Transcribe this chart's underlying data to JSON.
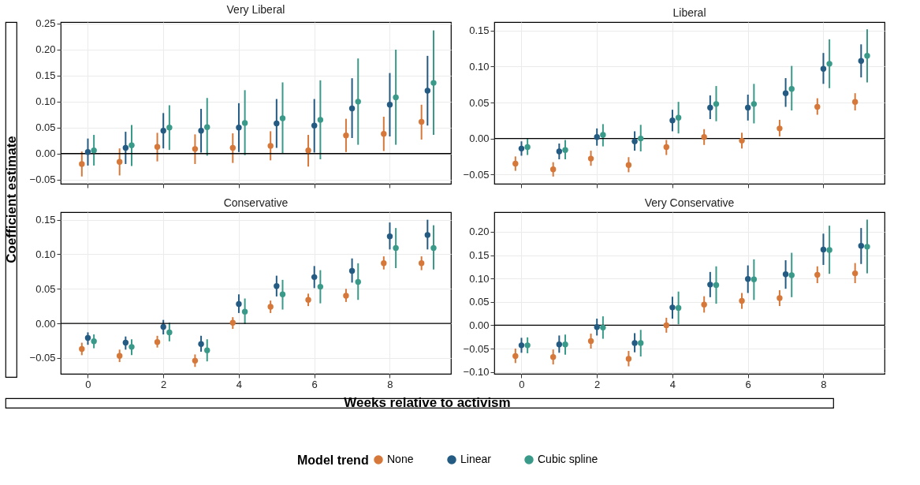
{
  "chart_data": [
    {
      "type": "scatter",
      "title": "Very Liberal",
      "ylabel": "Coefficient estimate",
      "legend": "bottom",
      "legend_title": "Model trend",
      "xlim": [
        -0.72,
        9.62
      ],
      "xticks": [
        0,
        2,
        4,
        6,
        8
      ],
      "ylim": [
        -0.058,
        0.253
      ],
      "yticks": [
        {
          "value": -0.05,
          "label": "−0.05"
        },
        {
          "value": 0,
          "label": "0.00"
        },
        {
          "value": 0.05,
          "label": "0.05"
        },
        {
          "value": 0.1,
          "label": "0.10"
        },
        {
          "value": 0.15,
          "label": "0.15"
        },
        {
          "value": 0.2,
          "label": "0.20"
        },
        {
          "value": 0.25,
          "label": "0.25"
        }
      ],
      "tick_labels": "y",
      "grid": true,
      "marker": "circle",
      "ref_lines": [
        {
          "axis": "y",
          "value": 0,
          "color": "#000000"
        }
      ],
      "series": [
        {
          "name": "None",
          "color": "#d5783a",
          "x": [
            -0.16,
            0.84,
            1.84,
            2.84,
            3.84,
            4.84,
            5.84,
            6.84,
            7.84,
            8.84
          ],
          "values": [
            -0.02,
            -0.016,
            0.013,
            0.009,
            0.011,
            0.015,
            0.006,
            0.035,
            0.038,
            0.061
          ],
          "errors": [
            [
              -0.044,
              0.004
            ],
            [
              -0.042,
              0.01
            ],
            [
              -0.015,
              0.04
            ],
            [
              -0.02,
              0.037
            ],
            [
              -0.018,
              0.039
            ],
            [
              -0.013,
              0.043
            ],
            [
              -0.025,
              0.036
            ],
            [
              0.003,
              0.067
            ],
            [
              0.005,
              0.071
            ],
            [
              0.027,
              0.094
            ]
          ]
        },
        {
          "name": "Linear",
          "color": "#235b82",
          "x": [
            0,
            1,
            2,
            3,
            4,
            5,
            6,
            7,
            8,
            9
          ],
          "values": [
            0.003,
            0.011,
            0.044,
            0.044,
            0.05,
            0.058,
            0.054,
            0.087,
            0.094,
            0.121
          ],
          "errors": [
            [
              -0.023,
              0.029
            ],
            [
              -0.02,
              0.042
            ],
            [
              0.01,
              0.078
            ],
            [
              0.002,
              0.086
            ],
            [
              0.003,
              0.097
            ],
            [
              0.011,
              0.105
            ],
            [
              0.002,
              0.105
            ],
            [
              0.03,
              0.145
            ],
            [
              0.033,
              0.155
            ],
            [
              0.054,
              0.188
            ]
          ]
        },
        {
          "name": "Cubic spline",
          "color": "#3a9a8a",
          "x": [
            0.16,
            1.16,
            2.16,
            3.16,
            4.16,
            5.16,
            6.16,
            7.16,
            8.16,
            9.16
          ],
          "values": [
            0.006,
            0.016,
            0.05,
            0.051,
            0.059,
            0.068,
            0.065,
            0.1,
            0.108,
            0.136
          ],
          "errors": [
            [
              -0.023,
              0.036
            ],
            [
              -0.024,
              0.055
            ],
            [
              0.007,
              0.093
            ],
            [
              -0.004,
              0.107
            ],
            [
              -0.003,
              0.122
            ],
            [
              0,
              0.137
            ],
            [
              -0.011,
              0.141
            ],
            [
              0.017,
              0.183
            ],
            [
              0.017,
              0.2
            ],
            [
              0.036,
              0.237
            ]
          ]
        }
      ]
    },
    {
      "type": "scatter",
      "title": "Liberal",
      "xlim": [
        -0.72,
        9.62
      ],
      "xticks": [
        0,
        2,
        4,
        6,
        8
      ],
      "ylim": [
        -0.063,
        0.162
      ],
      "yticks": [
        {
          "value": -0.05,
          "label": "−0.05"
        },
        {
          "value": 0,
          "label": "0.00"
        },
        {
          "value": 0.05,
          "label": "0.05"
        },
        {
          "value": 0.1,
          "label": "0.10"
        },
        {
          "value": 0.15,
          "label": "0.15"
        }
      ],
      "tick_labels": "y",
      "grid": true,
      "marker": "circle",
      "ref_lines": [
        {
          "axis": "y",
          "value": 0,
          "color": "#000000"
        }
      ],
      "series": [
        {
          "name": "None",
          "color": "#d5783a",
          "x": [
            -0.16,
            0.84,
            1.84,
            2.84,
            3.84,
            4.84,
            5.84,
            6.84,
            7.84,
            8.84
          ],
          "values": [
            -0.035,
            -0.043,
            -0.028,
            -0.037,
            -0.012,
            0.002,
            -0.003,
            0.014,
            0.044,
            0.051
          ],
          "errors": [
            [
              -0.045,
              -0.025
            ],
            [
              -0.053,
              -0.033
            ],
            [
              -0.038,
              -0.017
            ],
            [
              -0.047,
              -0.026
            ],
            [
              -0.023,
              -0.002
            ],
            [
              -0.009,
              0.013
            ],
            [
              -0.014,
              0.008
            ],
            [
              0.003,
              0.026
            ],
            [
              0.033,
              0.056
            ],
            [
              0.039,
              0.063
            ]
          ]
        },
        {
          "name": "Linear",
          "color": "#235b82",
          "x": [
            0,
            1,
            2,
            3,
            4,
            5,
            6,
            7,
            8,
            9
          ],
          "values": [
            -0.014,
            -0.018,
            0.002,
            -0.004,
            0.025,
            0.043,
            0.043,
            0.063,
            0.097,
            0.108
          ],
          "errors": [
            [
              -0.024,
              -0.004
            ],
            [
              -0.029,
              -0.007
            ],
            [
              -0.01,
              0.014
            ],
            [
              -0.017,
              0.01
            ],
            [
              0.01,
              0.04
            ],
            [
              0.027,
              0.06
            ],
            [
              0.025,
              0.061
            ],
            [
              0.044,
              0.084
            ],
            [
              0.076,
              0.119
            ],
            [
              0.085,
              0.131
            ]
          ]
        },
        {
          "name": "Cubic spline",
          "color": "#3a9a8a",
          "x": [
            0.16,
            1.16,
            2.16,
            3.16,
            4.16,
            5.16,
            6.16,
            7.16,
            8.16,
            9.16
          ],
          "values": [
            -0.012,
            -0.016,
            0.005,
            0,
            0.029,
            0.048,
            0.048,
            0.069,
            0.104,
            0.115
          ],
          "errors": [
            [
              -0.023,
              0
            ],
            [
              -0.029,
              -0.002
            ],
            [
              -0.011,
              0.02
            ],
            [
              -0.018,
              0.019
            ],
            [
              0.007,
              0.051
            ],
            [
              0.024,
              0.073
            ],
            [
              0.021,
              0.076
            ],
            [
              0.039,
              0.101
            ],
            [
              0.07,
              0.138
            ],
            [
              0.078,
              0.152
            ]
          ]
        }
      ]
    },
    {
      "type": "scatter",
      "title": "Conservative",
      "xlabel": "Weeks relative to activism",
      "xlim": [
        -0.72,
        9.62
      ],
      "xticks": [
        0,
        2,
        4,
        6,
        8
      ],
      "ylim": [
        -0.073,
        0.161
      ],
      "yticks": [
        {
          "value": -0.05,
          "label": "−0.05"
        },
        {
          "value": 0,
          "label": "0.00"
        },
        {
          "value": 0.05,
          "label": "0.05"
        },
        {
          "value": 0.1,
          "label": "0.10"
        },
        {
          "value": 0.15,
          "label": "0.15"
        }
      ],
      "grid": true,
      "marker": "circle",
      "ref_lines": [
        {
          "axis": "y",
          "value": 0,
          "color": "#000000"
        }
      ],
      "series": [
        {
          "name": "None",
          "color": "#d5783a",
          "x": [
            -0.16,
            0.84,
            1.84,
            2.84,
            3.84,
            4.84,
            5.84,
            6.84,
            7.84,
            8.84
          ],
          "values": [
            -0.037,
            -0.047,
            -0.027,
            -0.054,
            0.001,
            0.024,
            0.034,
            0.04,
            0.087,
            0.087
          ],
          "errors": [
            [
              -0.046,
              -0.028
            ],
            [
              -0.056,
              -0.038
            ],
            [
              -0.035,
              -0.018
            ],
            [
              -0.063,
              -0.045
            ],
            [
              -0.008,
              0.009
            ],
            [
              0.015,
              0.033
            ],
            [
              0.025,
              0.043
            ],
            [
              0.031,
              0.05
            ],
            [
              0.078,
              0.097
            ],
            [
              0.077,
              0.097
            ]
          ]
        },
        {
          "name": "Linear",
          "color": "#235b82",
          "x": [
            0,
            1,
            2,
            3,
            4,
            5,
            6,
            7,
            8,
            9
          ],
          "values": [
            -0.021,
            -0.028,
            -0.005,
            -0.03,
            0.028,
            0.054,
            0.067,
            0.076,
            0.126,
            0.128
          ],
          "errors": [
            [
              -0.031,
              -0.013
            ],
            [
              -0.038,
              -0.019
            ],
            [
              -0.016,
              0.005
            ],
            [
              -0.041,
              -0.018
            ],
            [
              0.015,
              0.042
            ],
            [
              0.039,
              0.069
            ],
            [
              0.051,
              0.083
            ],
            [
              0.059,
              0.094
            ],
            [
              0.107,
              0.146
            ],
            [
              0.107,
              0.15
            ]
          ]
        },
        {
          "name": "Cubic spline",
          "color": "#3a9a8a",
          "x": [
            0.16,
            1.16,
            2.16,
            3.16,
            4.16,
            5.16,
            6.16,
            7.16,
            8.16,
            9.16
          ],
          "values": [
            -0.026,
            -0.034,
            -0.013,
            -0.039,
            0.017,
            0.042,
            0.053,
            0.06,
            0.109,
            0.109
          ],
          "errors": [
            [
              -0.036,
              -0.016
            ],
            [
              -0.046,
              -0.023
            ],
            [
              -0.026,
              0.001
            ],
            [
              -0.055,
              -0.023
            ],
            [
              -0.001,
              0.036
            ],
            [
              0.02,
              0.063
            ],
            [
              0.029,
              0.077
            ],
            [
              0.034,
              0.087
            ],
            [
              0.08,
              0.138
            ],
            [
              0.078,
              0.142
            ]
          ]
        }
      ]
    },
    {
      "type": "scatter",
      "title": "Very Conservative",
      "xlim": [
        -0.72,
        9.62
      ],
      "xticks": [
        0,
        2,
        4,
        6,
        8
      ],
      "ylim": [
        -0.104,
        0.242
      ],
      "yticks": [
        {
          "value": -0.1,
          "label": "−0.10"
        },
        {
          "value": -0.05,
          "label": "−0.05"
        },
        {
          "value": 0,
          "label": "0.00"
        },
        {
          "value": 0.05,
          "label": "0.05"
        },
        {
          "value": 0.1,
          "label": "0.10"
        },
        {
          "value": 0.15,
          "label": "0.15"
        },
        {
          "value": 0.2,
          "label": "0.20"
        }
      ],
      "grid": true,
      "marker": "circle",
      "ref_lines": [
        {
          "axis": "y",
          "value": 0,
          "color": "#000000"
        }
      ],
      "series": [
        {
          "name": "None",
          "color": "#d5783a",
          "x": [
            -0.16,
            0.84,
            1.84,
            2.84,
            3.84,
            4.84,
            5.84,
            6.84,
            7.84,
            8.84
          ],
          "values": [
            -0.066,
            -0.068,
            -0.034,
            -0.072,
            0,
            0.044,
            0.052,
            0.058,
            0.108,
            0.111
          ],
          "errors": [
            [
              -0.081,
              -0.05
            ],
            [
              -0.084,
              -0.052
            ],
            [
              -0.05,
              -0.018
            ],
            [
              -0.088,
              -0.055
            ],
            [
              -0.016,
              0.016
            ],
            [
              0.027,
              0.062
            ],
            [
              0.035,
              0.069
            ],
            [
              0.041,
              0.075
            ],
            [
              0.09,
              0.126
            ],
            [
              0.09,
              0.133
            ]
          ]
        },
        {
          "name": "Linear",
          "color": "#235b82",
          "x": [
            0,
            1,
            2,
            3,
            4,
            5,
            6,
            7,
            8,
            9
          ],
          "values": [
            -0.043,
            -0.041,
            -0.004,
            -0.038,
            0.038,
            0.087,
            0.099,
            0.109,
            0.162,
            0.17
          ],
          "errors": [
            [
              -0.059,
              -0.027
            ],
            [
              -0.059,
              -0.022
            ],
            [
              -0.022,
              0.014
            ],
            [
              -0.058,
              -0.017
            ],
            [
              0.014,
              0.061
            ],
            [
              0.06,
              0.114
            ],
            [
              0.069,
              0.128
            ],
            [
              0.078,
              0.139
            ],
            [
              0.129,
              0.196
            ],
            [
              0.131,
              0.208
            ]
          ]
        },
        {
          "name": "Cubic spline",
          "color": "#3a9a8a",
          "x": [
            0.16,
            1.16,
            2.16,
            3.16,
            4.16,
            5.16,
            6.16,
            7.16,
            8.16,
            9.16
          ],
          "values": [
            -0.043,
            -0.041,
            -0.005,
            -0.038,
            0.037,
            0.086,
            0.098,
            0.107,
            0.161,
            0.168
          ],
          "errors": [
            [
              -0.06,
              -0.026
            ],
            [
              -0.063,
              -0.02
            ],
            [
              -0.029,
              0.019
            ],
            [
              -0.067,
              -0.01
            ],
            [
              0.002,
              0.072
            ],
            [
              0.046,
              0.126
            ],
            [
              0.054,
              0.141
            ],
            [
              0.06,
              0.155
            ],
            [
              0.11,
              0.213
            ],
            [
              0.111,
              0.226
            ]
          ]
        }
      ]
    }
  ]
}
